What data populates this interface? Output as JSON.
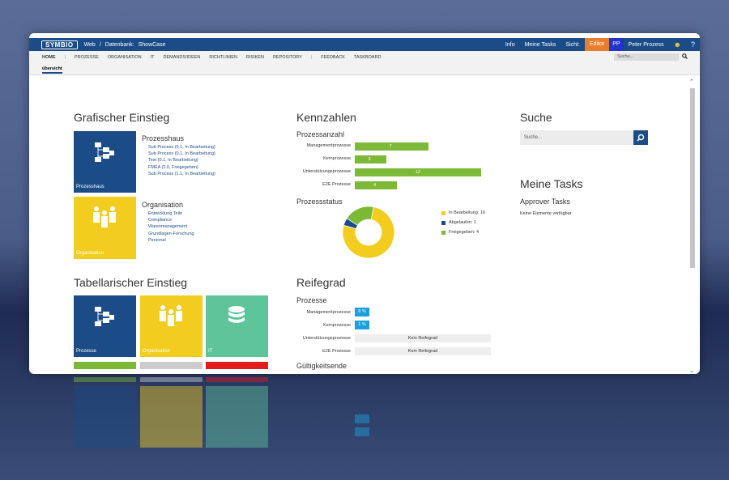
{
  "topbar": {
    "logo": "SYMBIO",
    "breadcrumb": [
      "Web",
      "/",
      "Datenbank:",
      "ShowCase"
    ],
    "info": "Info",
    "tasks": "Meine Tasks",
    "view_label": "Sicht:",
    "view": "Editor",
    "initials": "PP",
    "user": "Peter Prozess",
    "help": "?"
  },
  "nav": {
    "items": [
      "HOME",
      "|",
      "PROZESSE",
      "ORGANISATION",
      "IT",
      "DEMANDS/IDEEN",
      "RICHTLINIEN",
      "RISIKEN",
      "REPOSITORY",
      "|",
      "FEEDBACK",
      "TASKBOARD"
    ],
    "sub": "übersicht",
    "search_placeholder": "Suche..."
  },
  "grafisch": {
    "title": "Grafischer Einstieg",
    "prozesshaus": {
      "tile": "Prozesshaus",
      "heading": "Prozesshaus",
      "links": [
        "Sub Process (0.1, In Bearbeitung)",
        "Sub Process (0.1, In Bearbeitung)",
        "Test (0.1, In Bearbeitung)",
        "FMEA (2.0, Freigegeben)",
        "Sub Process (1.1, In Bearbeitung)"
      ]
    },
    "organisation": {
      "tile": "Organisation",
      "heading": "Organisation",
      "links": [
        "Entwicklung Teile",
        "Compliance",
        "Warenmanagement",
        "Grundlagen-Forschung",
        "Personal"
      ]
    }
  },
  "tabellarisch": {
    "title": "Tabellarischer Einstieg",
    "tiles": [
      "Prozesse",
      "Organisation",
      "IT"
    ],
    "status_colors": [
      "#7cb936",
      "#cccccc",
      "#e31b1b"
    ]
  },
  "kennzahlen": {
    "title": "Kennzahlen",
    "anzahl_title": "Prozessanzahl",
    "bars": [
      {
        "label": "Managementprozesse",
        "value": 7
      },
      {
        "label": "Kernprozesse",
        "value": 3
      },
      {
        "label": "Unterstützungsprozesse",
        "value": 12
      },
      {
        "label": "E2E Prozesse",
        "value": 4
      }
    ],
    "status_title": "Prozessstatus",
    "donut": [
      {
        "label": "In Bearbeitung: 16",
        "value": 16,
        "color": "#f2cd1f"
      },
      {
        "label": "Abgelaufen: 1",
        "value": 1,
        "color": "#1b4c87"
      },
      {
        "label": "Freigegeben: 4",
        "value": 4,
        "color": "#7cb936"
      }
    ]
  },
  "reifegrad": {
    "title": "Reifegrad",
    "sub": "Prozesse",
    "rows": [
      {
        "label": "Managementprozesse",
        "value": "8 %"
      },
      {
        "label": "Kernprozesse",
        "value": "1 %"
      },
      {
        "label": "Unterstützungsprozesse",
        "value": "Kein Reifegrad"
      },
      {
        "label": "E2E Prozesse",
        "value": "Kein Reifegrad"
      }
    ],
    "next": "Gültigkeitsende"
  },
  "suche": {
    "title": "Suche",
    "placeholder": "Suche..."
  },
  "tasks": {
    "title": "Meine Tasks",
    "sub": "Approver Tasks",
    "empty": "Keine Elemente verfügbar."
  }
}
